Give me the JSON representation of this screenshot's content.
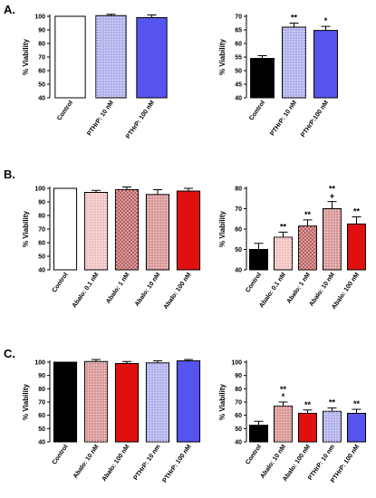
{
  "panels": [
    {
      "id": "A",
      "label": "A."
    },
    {
      "id": "B",
      "label": "B."
    },
    {
      "id": "C",
      "label": "C."
    }
  ],
  "chart_data": [
    {
      "panel": "A",
      "type": "bar",
      "ylabel": "% Viability",
      "ylim": [
        40,
        100
      ],
      "yticks": [
        40,
        50,
        60,
        70,
        80,
        90,
        100
      ],
      "categories": [
        "Control",
        "PTHrP: 10 nM",
        "PTHrP: 100 nM"
      ],
      "values": [
        100,
        100.5,
        99
      ],
      "errors": [
        0,
        1,
        2
      ],
      "significance": [
        "",
        "",
        ""
      ],
      "fills": [
        "white",
        "#b3b3ee",
        "#5555ee"
      ],
      "patterns": [
        "none",
        "dots",
        "none"
      ]
    },
    {
      "panel": "A",
      "type": "bar",
      "ylabel": "% Viability",
      "ylim": [
        40,
        70
      ],
      "yticks": [
        40,
        45,
        50,
        55,
        60,
        65,
        70
      ],
      "categories": [
        "Control",
        "PTHrP: 10 nM",
        "PTHrP:100 nM"
      ],
      "values": [
        54.5,
        66,
        64.8
      ],
      "errors": [
        1,
        1.5,
        1.5
      ],
      "significance": [
        "",
        "**",
        "*"
      ],
      "fills": [
        "black",
        "#b3b3ee",
        "#5555ee"
      ],
      "patterns": [
        "none",
        "dots",
        "none"
      ]
    },
    {
      "panel": "B",
      "type": "bar",
      "ylabel": "% Viability",
      "ylim": [
        40,
        100
      ],
      "yticks": [
        40,
        50,
        60,
        70,
        80,
        90,
        100
      ],
      "categories": [
        "Control",
        "Abalo: 0.1 nM",
        "Abalo: 1 nM",
        "Abalo: 10 nM",
        "Abalo: 100 nM"
      ],
      "values": [
        100,
        97,
        99,
        95.5,
        98
      ],
      "errors": [
        0,
        1.5,
        2,
        3.5,
        2
      ],
      "significance": [
        "",
        "",
        "",
        "",
        ""
      ],
      "fills": [
        "white",
        "#f2c4c4",
        "#e79a9a",
        "#d99a9a",
        "#e01010"
      ],
      "patterns": [
        "none",
        "dots",
        "checker",
        "dots",
        "none"
      ]
    },
    {
      "panel": "B",
      "type": "bar",
      "ylabel": "% Viability",
      "ylim": [
        40,
        80
      ],
      "yticks": [
        40,
        50,
        60,
        70,
        80
      ],
      "categories": [
        "Control",
        "Abalo: 0.1 nM",
        "Abalo: 1 nM",
        "Abalo: 10 nM",
        "Abalo: 100 nM"
      ],
      "values": [
        50,
        56,
        61.5,
        70,
        62.5
      ],
      "errors": [
        3,
        2.5,
        3,
        3.5,
        3.5
      ],
      "significance": [
        "",
        "**",
        "**",
        "**\n+",
        "**"
      ],
      "fills": [
        "black",
        "#f2c4c4",
        "#e79a9a",
        "#d99a9a",
        "#e01010"
      ],
      "patterns": [
        "none",
        "dots",
        "checker",
        "dots",
        "none"
      ]
    },
    {
      "panel": "C",
      "type": "bar",
      "ylabel": "% Viability",
      "ylim": [
        40,
        100
      ],
      "yticks": [
        40,
        50,
        60,
        70,
        80,
        90,
        100
      ],
      "categories": [
        "Control",
        "Abalo: 10 nM",
        "Abalo: 100 nM",
        "PTHrP: 10 nm",
        "PTHrP: 100 nM"
      ],
      "values": [
        100,
        100.5,
        99,
        99.5,
        101
      ],
      "errors": [
        0,
        1.5,
        1.5,
        1.5,
        1
      ],
      "significance": [
        "",
        "",
        "",
        "",
        ""
      ],
      "fills": [
        "black",
        "#d99a9a",
        "#e01010",
        "#b3b3ee",
        "#5555ee"
      ],
      "patterns": [
        "none",
        "dots",
        "none",
        "dots",
        "none"
      ]
    },
    {
      "panel": "C",
      "type": "bar",
      "ylabel": "% Viability",
      "ylim": [
        40,
        100
      ],
      "yticks": [
        40,
        50,
        60,
        70,
        80,
        90,
        100
      ],
      "categories": [
        "Control",
        "Abalo: 10 nM",
        "Abalo: 100 nM",
        "PTHrP: 10 nm",
        "PTHrP: 100 nM"
      ],
      "values": [
        52.5,
        67,
        61.5,
        63,
        61.5
      ],
      "errors": [
        3,
        3,
        2.5,
        2.5,
        3
      ],
      "significance": [
        "",
        "**\n*",
        "**",
        "**",
        "**"
      ],
      "fills": [
        "black",
        "#d99a9a",
        "#e01010",
        "#b3b3ee",
        "#5555ee"
      ],
      "patterns": [
        "none",
        "dots",
        "none",
        "dots",
        "none"
      ]
    }
  ]
}
